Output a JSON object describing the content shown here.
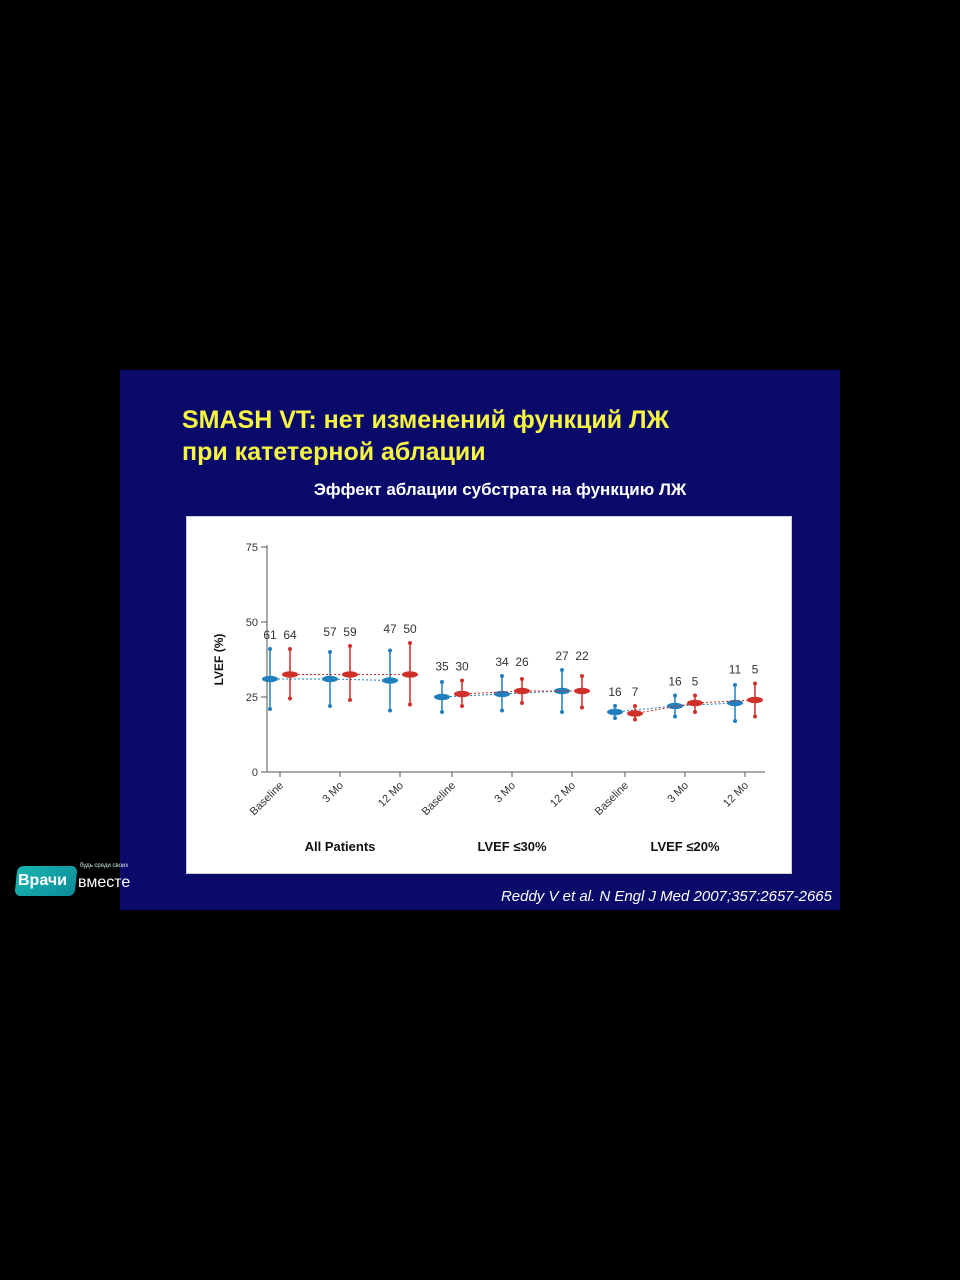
{
  "slide": {
    "title_line1": "SMASH VT: нет изменений функций ЛЖ",
    "title_line2": "при катетерной аблации",
    "subtitle": "Эффект аблации субстрата на функцию ЛЖ",
    "citation": "Reddy V et al. N Engl J Med 2007;357:2657-2665"
  },
  "logo": {
    "text1": "Врачи",
    "text2": "вместе",
    "tagline": "будь среди своих"
  },
  "colors": {
    "background": "#000000",
    "slide": "#0a0a6b",
    "title": "#f5f542",
    "blue_series": "#1f7fbf",
    "red_series": "#d0302a"
  },
  "chart_data": {
    "type": "scatter",
    "ylabel": "LVEF (%)",
    "ylim": [
      0,
      75
    ],
    "yticks": [
      0,
      25,
      50,
      75
    ],
    "groups": [
      {
        "label": "All Patients",
        "timepoints": [
          "Baseline",
          "3 Mo",
          "12 Mo"
        ]
      },
      {
        "label": "LVEF ≤30%",
        "timepoints": [
          "Baseline",
          "3 Mo",
          "12 Mo"
        ]
      },
      {
        "label": "LVEF ≤20%",
        "timepoints": [
          "Baseline",
          "3 Mo",
          "12 Mo"
        ]
      }
    ],
    "series": [
      {
        "color": "#1f7fbf",
        "points": [
          {
            "mean": 31,
            "low": 21,
            "high": 41,
            "n": "61"
          },
          {
            "mean": 31,
            "low": 22,
            "high": 40,
            "n": "57"
          },
          {
            "mean": 30.5,
            "low": 20.5,
            "high": 40.5,
            "n": "47"
          },
          {
            "mean": 25,
            "low": 20,
            "high": 30,
            "n": "35"
          },
          {
            "mean": 26,
            "low": 20.5,
            "high": 32,
            "n": "34"
          },
          {
            "mean": 27,
            "low": 20,
            "high": 34,
            "n": "27"
          },
          {
            "mean": 20,
            "low": 18,
            "high": 22,
            "n": "16"
          },
          {
            "mean": 22,
            "low": 18.5,
            "high": 25.5,
            "n": "16"
          },
          {
            "mean": 23,
            "low": 17,
            "high": 29,
            "n": "11"
          }
        ]
      },
      {
        "color": "#d0302a",
        "points": [
          {
            "mean": 32.5,
            "low": 24.5,
            "high": 41,
            "n": "64"
          },
          {
            "mean": 32.5,
            "low": 24,
            "high": 42,
            "n": "59"
          },
          {
            "mean": 32.5,
            "low": 22.5,
            "high": 43,
            "n": "50"
          },
          {
            "mean": 26,
            "low": 22,
            "high": 30.5,
            "n": "30"
          },
          {
            "mean": 27,
            "low": 23,
            "high": 31,
            "n": "26"
          },
          {
            "mean": 27,
            "low": 21.5,
            "high": 32,
            "n": "22"
          },
          {
            "mean": 19.5,
            "low": 17.5,
            "high": 22,
            "n": "7"
          },
          {
            "mean": 23,
            "low": 20,
            "high": 25.5,
            "n": "5"
          },
          {
            "mean": 24,
            "low": 18.5,
            "high": 29.5,
            "n": "5"
          }
        ]
      }
    ]
  }
}
